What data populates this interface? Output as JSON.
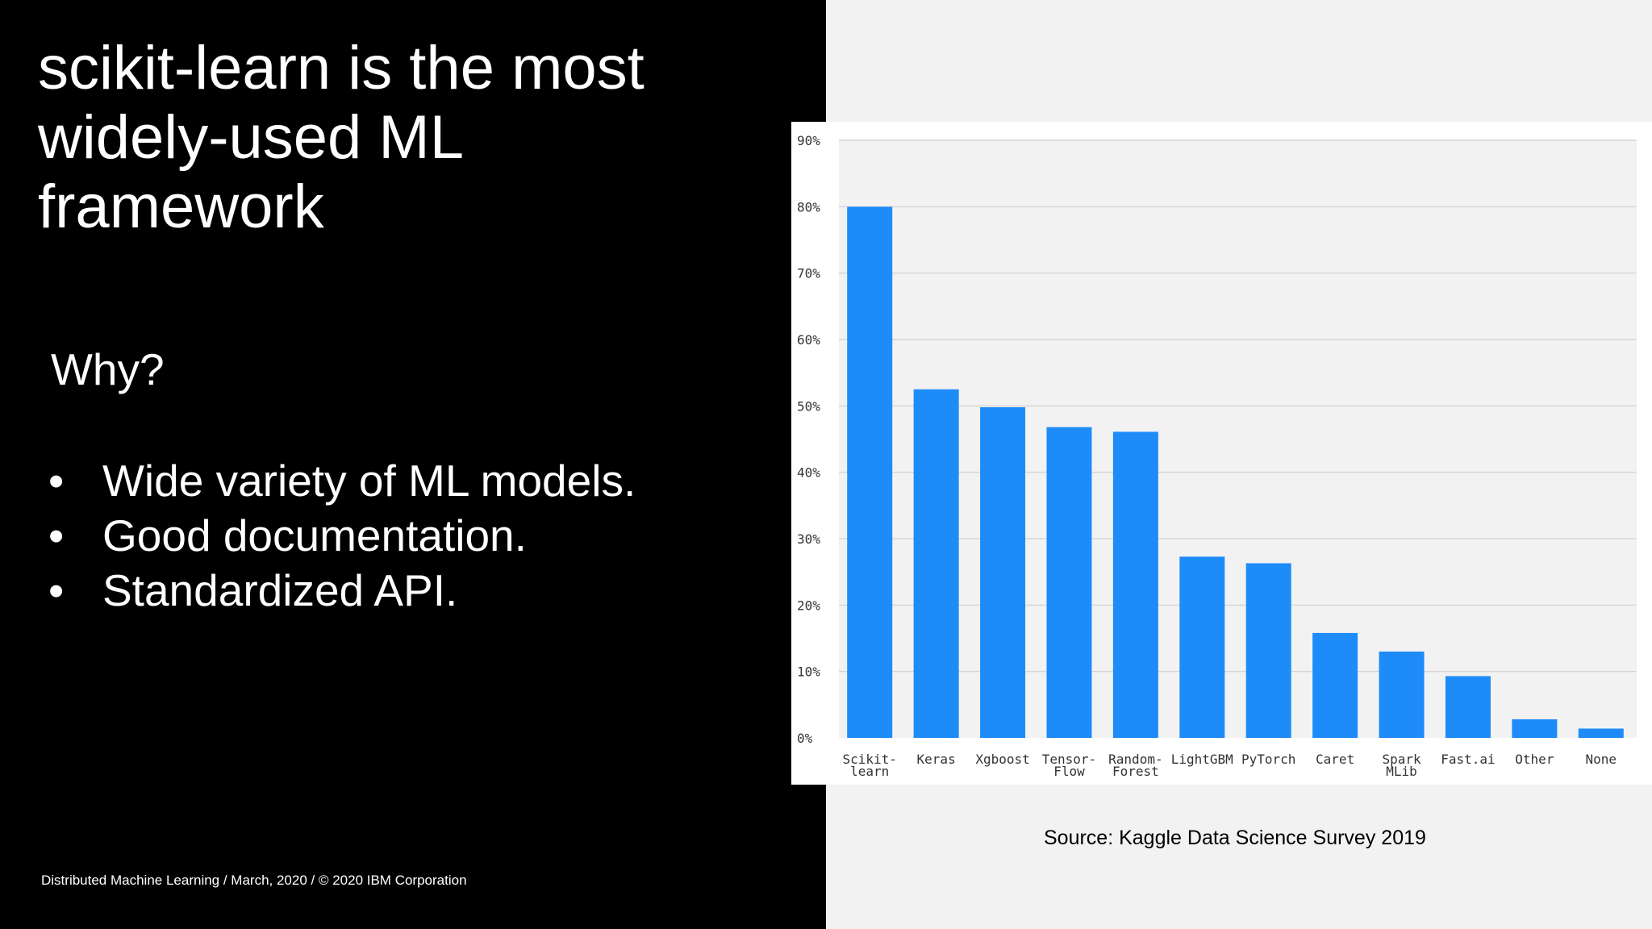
{
  "slide": {
    "title": "scikit-learn is the most\nwidely-used ML\nframework",
    "why_heading": "Why?",
    "bullets": [
      "Wide variety of ML models.",
      "Good documentation.",
      "Standardized API."
    ],
    "bullet_symbol": "•",
    "footer": "Distributed Machine Learning / March, 2020 / © 2020 IBM Corporation",
    "source": "Source: Kaggle Data Science Survey 2019"
  },
  "chart_data": {
    "type": "bar",
    "title": "",
    "xlabel": "",
    "ylabel": "",
    "categories": [
      [
        "Scikit-",
        "learn"
      ],
      [
        "Keras"
      ],
      [
        "Xgboost"
      ],
      [
        "Tensor-",
        "Flow"
      ],
      [
        "Random-",
        "Forest"
      ],
      [
        "LightGBM"
      ],
      [
        "PyTorch"
      ],
      [
        "Caret"
      ],
      [
        "Spark",
        "MLib"
      ],
      [
        "Fast.ai"
      ],
      [
        "Other"
      ],
      [
        "None"
      ]
    ],
    "values": [
      80,
      52.5,
      49.8,
      46.8,
      46.1,
      27.3,
      26.3,
      15.8,
      13,
      9.3,
      2.8,
      1.4
    ],
    "ylim": [
      0,
      90
    ],
    "yticks": [
      0,
      10,
      20,
      30,
      40,
      50,
      60,
      70,
      80,
      90
    ],
    "ytick_labels": [
      "0%",
      "10%",
      "20%",
      "30%",
      "40%",
      "50%",
      "60%",
      "70%",
      "80%",
      "90%"
    ],
    "grid": true,
    "legend": "none",
    "colors": {
      "bar": "#1e8cf8",
      "plot_bg": "#f3f2f3",
      "grid": "#d6d6d6",
      "tick_text": "#333333"
    }
  }
}
